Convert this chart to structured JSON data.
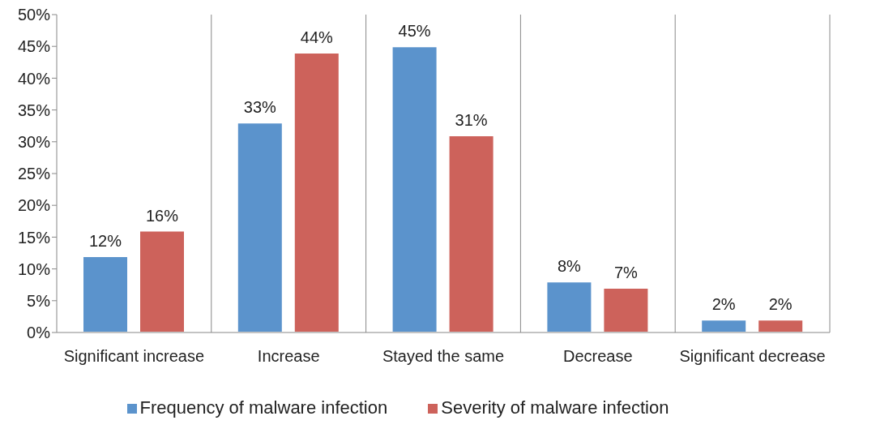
{
  "chart_data": {
    "type": "bar",
    "categories": [
      "Significant increase",
      "Increase",
      "Stayed the same",
      "Decrease",
      "Significant decrease"
    ],
    "series": [
      {
        "name": "Frequency of malware infection",
        "color": "#5b93cc",
        "values": [
          12,
          33,
          45,
          8,
          2
        ],
        "value_labels": [
          "12%",
          "33%",
          "45%",
          "8%",
          "2%"
        ]
      },
      {
        "name": "Severity of malware infection",
        "color": "#cd625b",
        "values": [
          16,
          44,
          31,
          7,
          2
        ],
        "value_labels": [
          "16%",
          "44%",
          "31%",
          "7%",
          "2%"
        ]
      }
    ],
    "ylim": [
      0,
      50
    ],
    "yticks": [
      {
        "value": 0,
        "label": "0%"
      },
      {
        "value": 5,
        "label": "5%"
      },
      {
        "value": 10,
        "label": "10%"
      },
      {
        "value": 15,
        "label": "15%"
      },
      {
        "value": 20,
        "label": "20%"
      },
      {
        "value": 25,
        "label": "25%"
      },
      {
        "value": 30,
        "label": "30%"
      },
      {
        "value": 35,
        "label": "35%"
      },
      {
        "value": 40,
        "label": "40%"
      },
      {
        "value": 45,
        "label": "45%"
      },
      {
        "value": 50,
        "label": "50%"
      }
    ],
    "grid": "x",
    "legend": "bottom"
  }
}
